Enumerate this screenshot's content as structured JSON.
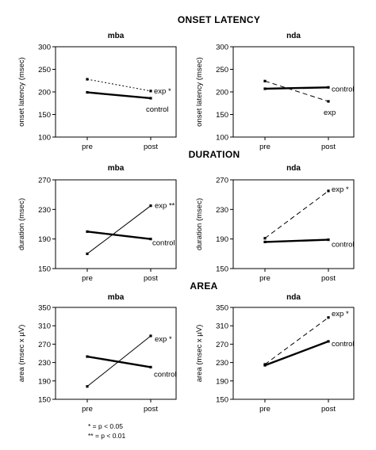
{
  "sections": [
    "ONSET LATENCY",
    "DURATION",
    "AREA"
  ],
  "footnotes": [
    "* = p < 0.05",
    "** = p < 0.01"
  ],
  "chart_data": [
    {
      "type": "line",
      "section": "ONSET LATENCY",
      "title": "mba",
      "categories": [
        "pre",
        "post"
      ],
      "ylabel": "onset latency (msec)",
      "ylim": [
        100,
        300
      ],
      "yticks": [
        100,
        150,
        200,
        250,
        300
      ],
      "series": [
        {
          "name": "exp",
          "marker": "*",
          "values": [
            228,
            202
          ],
          "style": "dotted",
          "width": 1
        },
        {
          "name": "control",
          "marker": "",
          "values": [
            199,
            186
          ],
          "style": "solid",
          "width": 2.4
        }
      ]
    },
    {
      "type": "line",
      "section": "ONSET LATENCY",
      "title": "nda",
      "categories": [
        "pre",
        "post"
      ],
      "ylabel": "onset latency (msec)",
      "ylim": [
        100,
        300
      ],
      "yticks": [
        100,
        150,
        200,
        250,
        300
      ],
      "series": [
        {
          "name": "control",
          "marker": "",
          "values": [
            207,
            210
          ],
          "style": "solid",
          "width": 2.4
        },
        {
          "name": "exp",
          "marker": "",
          "values": [
            224,
            179
          ],
          "style": "dashed",
          "width": 1
        }
      ]
    },
    {
      "type": "line",
      "section": "DURATION",
      "title": "mba",
      "categories": [
        "pre",
        "post"
      ],
      "ylabel": "duration (msec)",
      "ylim": [
        150,
        270
      ],
      "yticks": [
        150,
        190,
        230,
        270
      ],
      "series": [
        {
          "name": "exp",
          "marker": "**",
          "values": [
            170,
            235
          ],
          "style": "solid",
          "width": 1
        },
        {
          "name": "control",
          "marker": "",
          "values": [
            200,
            190
          ],
          "style": "solid",
          "width": 2.4
        }
      ]
    },
    {
      "type": "line",
      "section": "DURATION",
      "title": "nda",
      "categories": [
        "pre",
        "post"
      ],
      "ylabel": "duration (msec)",
      "ylim": [
        150,
        270
      ],
      "yticks": [
        150,
        190,
        230,
        270
      ],
      "series": [
        {
          "name": "exp",
          "marker": "*",
          "values": [
            191,
            255
          ],
          "style": "dashed",
          "width": 1
        },
        {
          "name": "control",
          "marker": "",
          "values": [
            186,
            189
          ],
          "style": "solid",
          "width": 2.4
        }
      ]
    },
    {
      "type": "line",
      "section": "AREA",
      "title": "mba",
      "categories": [
        "pre",
        "post"
      ],
      "ylabel": "area (msec x µV)",
      "ylim": [
        150,
        350
      ],
      "yticks": [
        150,
        190,
        230,
        270,
        310,
        350
      ],
      "series": [
        {
          "name": "exp",
          "marker": "*",
          "values": [
            178,
            288
          ],
          "style": "solid",
          "width": 1
        },
        {
          "name": "control",
          "marker": "",
          "values": [
            243,
            220
          ],
          "style": "solid",
          "width": 2.4
        }
      ]
    },
    {
      "type": "line",
      "section": "AREA",
      "title": "nda",
      "categories": [
        "pre",
        "post"
      ],
      "ylabel": "area (msec x µV)",
      "ylim": [
        150,
        350
      ],
      "yticks": [
        150,
        190,
        230,
        270,
        310,
        350
      ],
      "series": [
        {
          "name": "exp",
          "marker": "*",
          "values": [
            226,
            328
          ],
          "style": "dashed",
          "width": 1
        },
        {
          "name": "control",
          "marker": "",
          "values": [
            224,
            276
          ],
          "style": "solid",
          "width": 2.4
        }
      ]
    }
  ]
}
